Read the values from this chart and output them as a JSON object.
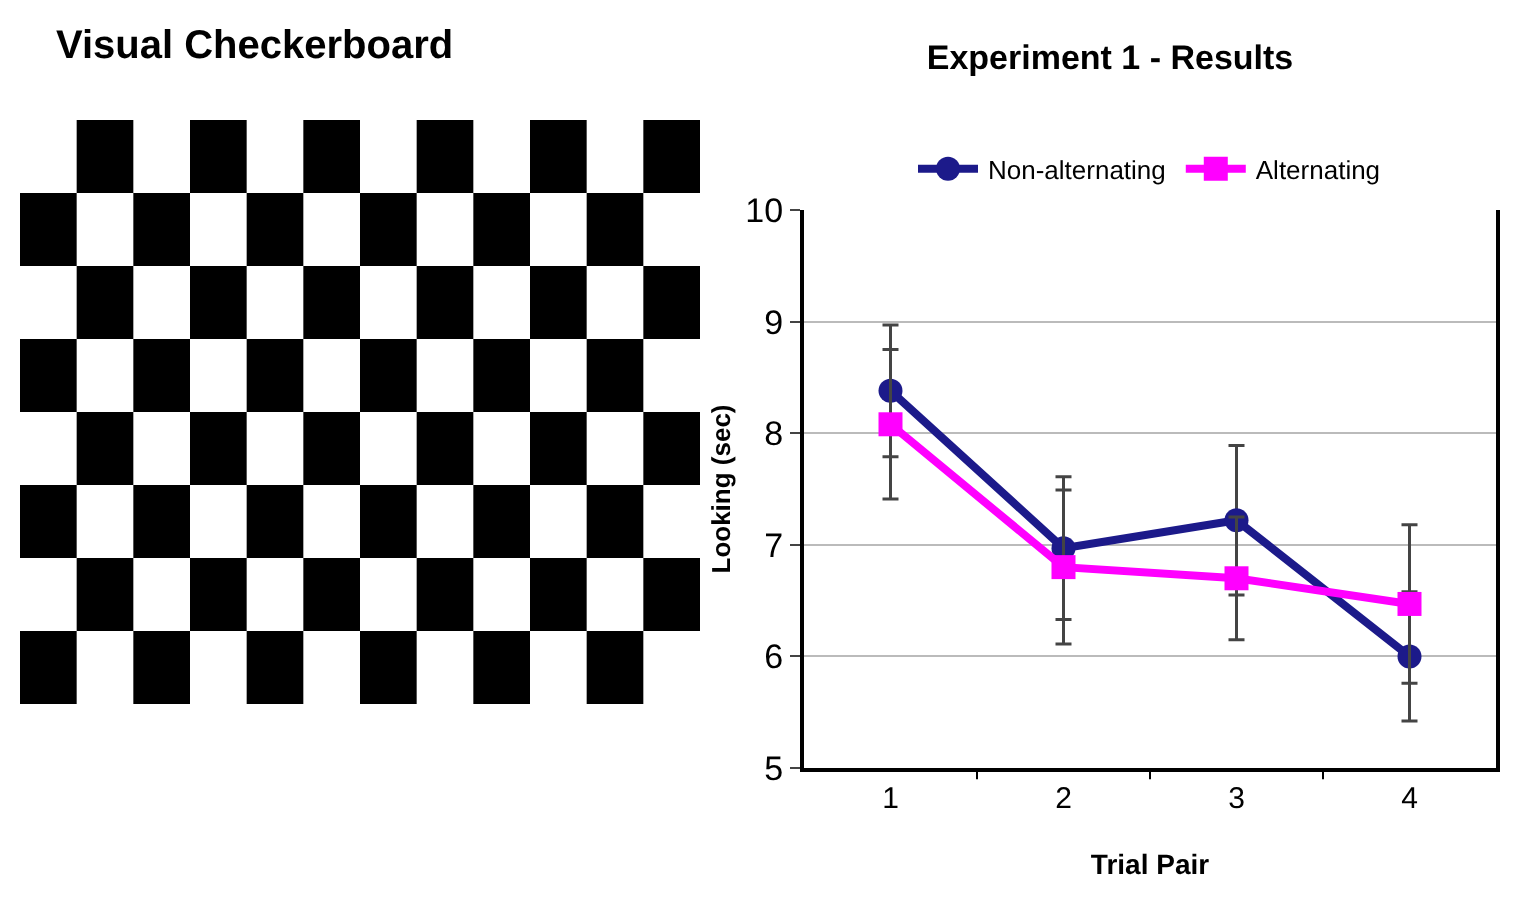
{
  "chart_data": {
    "type": "line",
    "title": "Experiment 1 - Results",
    "xlabel": "Trial Pair",
    "ylabel": "Looking (sec)",
    "annotations": [
      "Visual Checkerboard"
    ],
    "categories": [
      "1",
      "2",
      "3",
      "4"
    ],
    "series": [
      {
        "name": "Non-alternating",
        "color": "#1c1a8a",
        "values": [
          8.38,
          6.97,
          7.22,
          6.0
        ],
        "errors": [
          0.59,
          0.64,
          0.67,
          0.58
        ]
      },
      {
        "name": "Alternating",
        "color": "#ff00ff",
        "marker": "square",
        "values": [
          8.08,
          6.8,
          6.7,
          6.47
        ],
        "errors": [
          0.67,
          0.69,
          0.55,
          0.71
        ]
      }
    ],
    "ylim": [
      5,
      10
    ],
    "yticks": [
      5,
      6,
      7,
      8,
      9,
      10
    ],
    "grid": "y",
    "legend": "top",
    "marker": "circle",
    "line_style": "solid"
  }
}
